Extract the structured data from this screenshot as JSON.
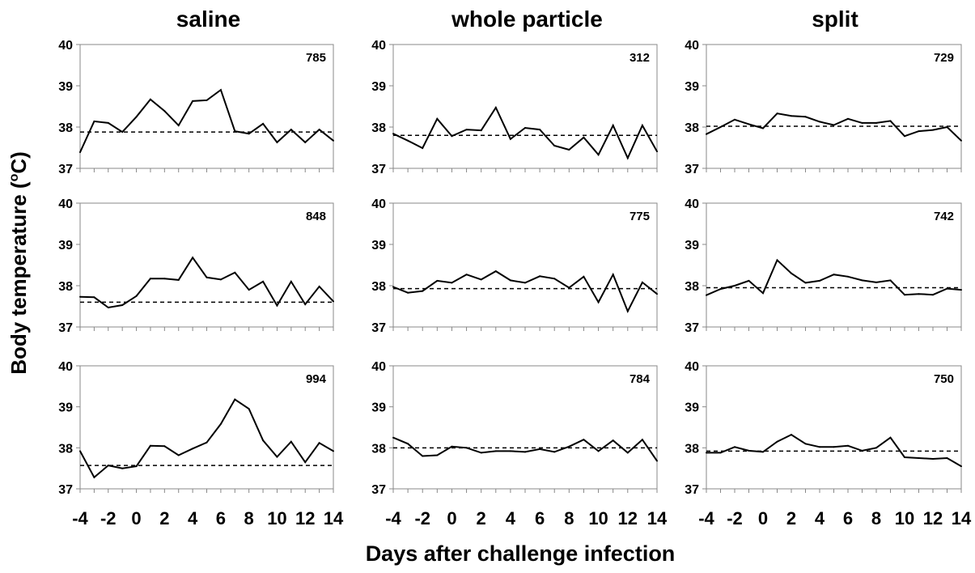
{
  "figure": {
    "column_titles": [
      "saline",
      "whole particle",
      "split"
    ],
    "y_axis_label": {
      "text": "Body temperature (",
      "superscript": "o",
      "unit": "C)"
    },
    "x_axis_label": "Days after challenge infection",
    "colors": {
      "series": "#000000",
      "reference": "#000000",
      "frame": "#888888"
    }
  },
  "chart_data": [
    {
      "type": "line",
      "group": "saline",
      "label": "785",
      "xlim": [
        -4,
        14
      ],
      "ylim": [
        37,
        40
      ],
      "yticks": [
        37,
        38,
        39,
        40
      ],
      "x": [
        -4,
        -3,
        -2,
        -1,
        0,
        1,
        2,
        3,
        4,
        5,
        6,
        7,
        8,
        9,
        10,
        11,
        12,
        13,
        14
      ],
      "series": [
        {
          "values": [
            37.39,
            38.14,
            38.1,
            37.88,
            38.25,
            38.67,
            38.39,
            38.04,
            38.63,
            38.65,
            38.9,
            37.9,
            37.84,
            38.08,
            37.63,
            37.94,
            37.63,
            37.94,
            37.67
          ]
        }
      ],
      "reference_line": {
        "y": 37.88,
        "style": "dashed"
      }
    },
    {
      "type": "line",
      "group": "saline",
      "label": "848",
      "xlim": [
        -4,
        14
      ],
      "ylim": [
        37,
        40
      ],
      "yticks": [
        37,
        38,
        39,
        40
      ],
      "x": [
        -4,
        -3,
        -2,
        -1,
        0,
        1,
        2,
        3,
        4,
        5,
        6,
        7,
        8,
        9,
        10,
        11,
        12,
        13,
        14
      ],
      "series": [
        {
          "values": [
            37.73,
            37.72,
            37.47,
            37.53,
            37.75,
            38.17,
            38.17,
            38.14,
            38.68,
            38.2,
            38.15,
            38.32,
            37.9,
            38.1,
            37.52,
            38.1,
            37.55,
            37.98,
            37.62
          ]
        }
      ],
      "reference_line": {
        "y": 37.6,
        "style": "dashed"
      }
    },
    {
      "type": "line",
      "group": "saline",
      "label": "994",
      "xlim": [
        -4,
        14
      ],
      "ylim": [
        37,
        40
      ],
      "yticks": [
        37,
        38,
        39,
        40
      ],
      "xticks": [
        -4,
        -2,
        0,
        2,
        4,
        6,
        8,
        10,
        12,
        14
      ],
      "x": [
        -4,
        -3,
        -2,
        -1,
        0,
        1,
        2,
        3,
        4,
        5,
        6,
        7,
        8,
        9,
        10,
        11,
        12,
        13,
        14
      ],
      "series": [
        {
          "values": [
            37.92,
            37.28,
            37.57,
            37.5,
            37.55,
            38.05,
            38.04,
            37.82,
            37.98,
            38.13,
            38.58,
            39.18,
            38.95,
            38.18,
            37.78,
            38.15,
            37.65,
            38.12,
            37.92
          ]
        }
      ],
      "reference_line": {
        "y": 37.57,
        "style": "dashed"
      }
    },
    {
      "type": "line",
      "group": "whole particle",
      "label": "312",
      "xlim": [
        -4,
        14
      ],
      "ylim": [
        37,
        40
      ],
      "yticks": [
        37,
        38,
        39,
        40
      ],
      "x": [
        -4,
        -3,
        -2,
        -1,
        0,
        1,
        2,
        3,
        4,
        5,
        6,
        7,
        8,
        9,
        10,
        11,
        12,
        13,
        14
      ],
      "series": [
        {
          "values": [
            37.84,
            37.67,
            37.49,
            38.2,
            37.78,
            37.94,
            37.92,
            38.47,
            37.71,
            37.98,
            37.94,
            37.55,
            37.45,
            37.75,
            37.33,
            38.04,
            37.25,
            38.04,
            37.41
          ]
        }
      ],
      "reference_line": {
        "y": 37.8,
        "style": "dashed"
      }
    },
    {
      "type": "line",
      "group": "whole particle",
      "label": "775",
      "xlim": [
        -4,
        14
      ],
      "ylim": [
        37,
        40
      ],
      "yticks": [
        37,
        38,
        39,
        40
      ],
      "x": [
        -4,
        -3,
        -2,
        -1,
        0,
        1,
        2,
        3,
        4,
        5,
        6,
        7,
        8,
        9,
        10,
        11,
        12,
        13,
        14
      ],
      "series": [
        {
          "values": [
            37.97,
            37.83,
            37.87,
            38.12,
            38.07,
            38.27,
            38.15,
            38.35,
            38.13,
            38.07,
            38.23,
            38.17,
            37.95,
            38.22,
            37.6,
            38.27,
            37.38,
            38.08,
            37.8
          ]
        }
      ],
      "reference_line": {
        "y": 37.93,
        "style": "dashed"
      }
    },
    {
      "type": "line",
      "group": "whole particle",
      "label": "784",
      "xlim": [
        -4,
        14
      ],
      "ylim": [
        37,
        40
      ],
      "yticks": [
        37,
        38,
        39,
        40
      ],
      "xticks": [
        -4,
        -2,
        0,
        2,
        4,
        6,
        8,
        10,
        12,
        14
      ],
      "x": [
        -4,
        -3,
        -2,
        -1,
        0,
        1,
        2,
        3,
        4,
        5,
        6,
        7,
        8,
        9,
        10,
        11,
        12,
        13,
        14
      ],
      "series": [
        {
          "values": [
            38.25,
            38.1,
            37.8,
            37.82,
            38.03,
            38.0,
            37.88,
            37.92,
            37.92,
            37.9,
            37.97,
            37.9,
            38.03,
            38.2,
            37.92,
            38.18,
            37.88,
            38.2,
            37.68
          ]
        }
      ],
      "reference_line": {
        "y": 38.0,
        "style": "dashed"
      }
    },
    {
      "type": "line",
      "group": "split",
      "label": "729",
      "xlim": [
        -4,
        14
      ],
      "ylim": [
        37,
        40
      ],
      "yticks": [
        37,
        38,
        39,
        40
      ],
      "x": [
        -4,
        -3,
        -2,
        -1,
        0,
        1,
        2,
        3,
        4,
        5,
        6,
        7,
        8,
        9,
        10,
        11,
        12,
        13,
        14
      ],
      "series": [
        {
          "values": [
            37.83,
            38.0,
            38.18,
            38.07,
            37.97,
            38.33,
            38.27,
            38.25,
            38.13,
            38.05,
            38.2,
            38.1,
            38.1,
            38.15,
            37.78,
            37.9,
            37.93,
            38.0,
            37.67
          ]
        }
      ],
      "reference_line": {
        "y": 38.02,
        "style": "dashed"
      }
    },
    {
      "type": "line",
      "group": "split",
      "label": "742",
      "xlim": [
        -4,
        14
      ],
      "ylim": [
        37,
        40
      ],
      "yticks": [
        37,
        38,
        39,
        40
      ],
      "x": [
        -4,
        -3,
        -2,
        -1,
        0,
        1,
        2,
        3,
        4,
        5,
        6,
        7,
        8,
        9,
        10,
        11,
        12,
        13,
        14
      ],
      "series": [
        {
          "values": [
            37.77,
            37.92,
            38.0,
            38.12,
            37.82,
            38.62,
            38.3,
            38.07,
            38.12,
            38.27,
            38.22,
            38.13,
            38.08,
            38.13,
            37.78,
            37.8,
            37.78,
            37.93,
            37.9
          ]
        }
      ],
      "reference_line": {
        "y": 37.95,
        "style": "dashed"
      }
    },
    {
      "type": "line",
      "group": "split",
      "label": "750",
      "xlim": [
        -4,
        14
      ],
      "ylim": [
        37,
        40
      ],
      "yticks": [
        37,
        38,
        39,
        40
      ],
      "xticks": [
        -4,
        -2,
        0,
        2,
        4,
        6,
        8,
        10,
        12,
        14
      ],
      "x": [
        -4,
        -3,
        -2,
        -1,
        0,
        1,
        2,
        3,
        4,
        5,
        6,
        7,
        8,
        9,
        10,
        11,
        12,
        13,
        14
      ],
      "series": [
        {
          "values": [
            37.88,
            37.88,
            38.02,
            37.93,
            37.9,
            38.15,
            38.32,
            38.1,
            38.02,
            38.02,
            38.05,
            37.93,
            38.0,
            38.25,
            37.77,
            37.75,
            37.73,
            37.75,
            37.55
          ]
        }
      ],
      "reference_line": {
        "y": 37.92,
        "style": "dashed"
      }
    }
  ]
}
